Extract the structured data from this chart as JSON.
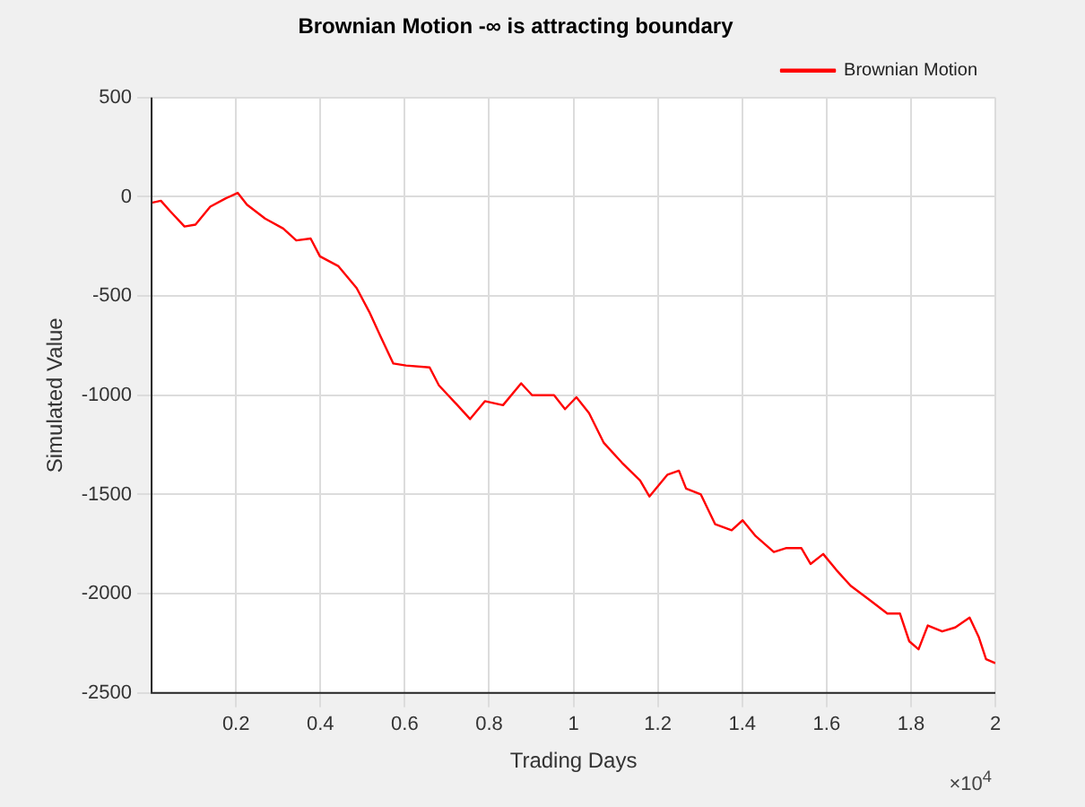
{
  "chart_data": {
    "type": "line",
    "title": "Brownian Motion -∞ is attracting boundary",
    "xlabel": "Trading Days",
    "ylabel": "Simulated Value",
    "series": [
      {
        "name": "Brownian Motion",
        "color": "#ff0000",
        "x": [
          0,
          0.022,
          0.043,
          0.078,
          0.104,
          0.139,
          0.174,
          0.204,
          0.226,
          0.269,
          0.312,
          0.343,
          0.377,
          0.399,
          0.443,
          0.486,
          0.516,
          0.542,
          0.573,
          0.603,
          0.659,
          0.681,
          0.725,
          0.755,
          0.79,
          0.833,
          0.876,
          0.902,
          0.954,
          0.98,
          1.007,
          1.037,
          1.072,
          1.115,
          1.158,
          1.18,
          1.223,
          1.25,
          1.267,
          1.302,
          1.336,
          1.375,
          1.401,
          1.432,
          1.475,
          1.505,
          1.54,
          1.562,
          1.592,
          1.623,
          1.657,
          1.701,
          1.744,
          1.774,
          1.796,
          1.818,
          1.84,
          1.874,
          1.905,
          1.939,
          1.961,
          1.978,
          2
        ],
        "values": [
          -30,
          -20,
          -70,
          -150,
          -140,
          -50,
          -10,
          20,
          -40,
          -110,
          -160,
          -220,
          -210,
          -300,
          -350,
          -460,
          -580,
          -700,
          -840,
          -850,
          -860,
          -950,
          -1050,
          -1120,
          -1030,
          -1050,
          -940,
          -1000,
          -1000,
          -1070,
          -1010,
          -1090,
          -1240,
          -1340,
          -1430,
          -1510,
          -1400,
          -1380,
          -1470,
          -1500,
          -1650,
          -1680,
          -1630,
          -1710,
          -1790,
          -1770,
          -1770,
          -1850,
          -1800,
          -1880,
          -1960,
          -2030,
          -2100,
          -2100,
          -2240,
          -2280,
          -2160,
          -2190,
          -2170,
          -2120,
          -2220,
          -2330,
          -2350
        ]
      }
    ],
    "xlim": [
      0,
      2
    ],
    "xticks": [
      0.2,
      0.4,
      0.6,
      0.8,
      1,
      1.2,
      1.4,
      1.6,
      1.8,
      2
    ],
    "ylim": [
      -2500,
      500
    ],
    "yticks": [
      -2500,
      -2000,
      -1500,
      -1000,
      -500,
      0,
      500
    ],
    "annotations": [
      "×10$^{4}$"
    ],
    "grid": true,
    "legend": "top right",
    "marker": "none",
    "line_style": "solid"
  }
}
